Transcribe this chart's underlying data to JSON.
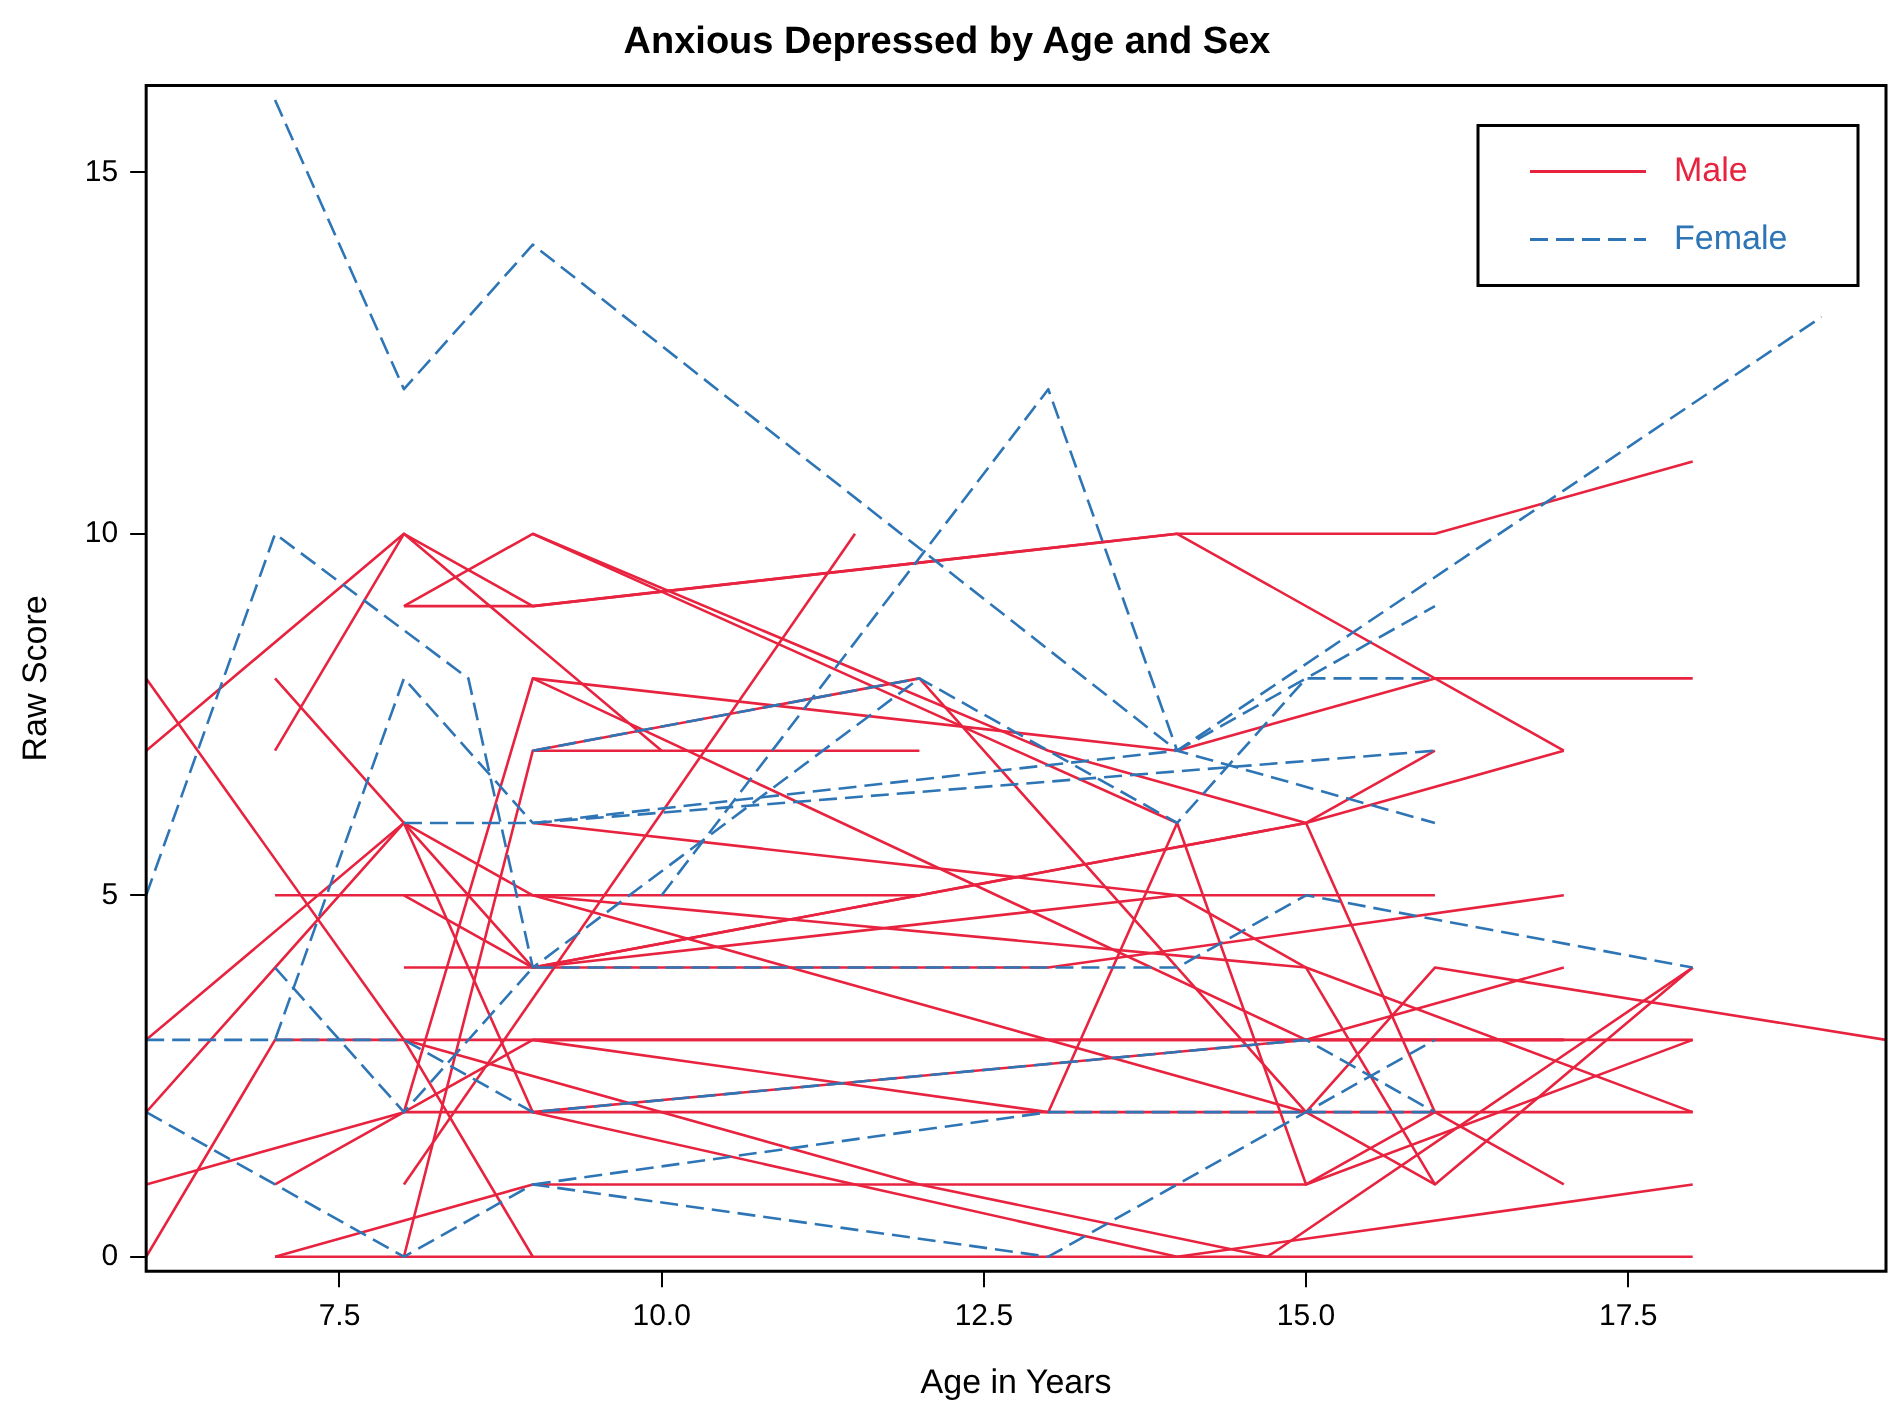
{
  "chart_data": {
    "type": "line",
    "title": "Anxious Depressed by Age and Sex",
    "xlabel": "Age in Years",
    "ylabel": "Raw Score",
    "xlim": [
      6,
      19.5
    ],
    "xticks": [
      {
        "value": 7.5,
        "label": "7.5"
      },
      {
        "value": 10,
        "label": "10.0"
      },
      {
        "value": 12.5,
        "label": "12.5"
      },
      {
        "value": 15,
        "label": "15.0"
      },
      {
        "value": 17.5,
        "label": "17.5"
      }
    ],
    "ylim": [
      -0.2,
      16.2
    ],
    "yticks": [
      0,
      5,
      10,
      15
    ],
    "grid": false,
    "legend": "top right",
    "marker": "none",
    "series": [
      {
        "name": "Male",
        "color": "#e8233f",
        "line_style": "solid",
        "x": [
          6,
          8,
          9,
          14,
          16,
          18
        ],
        "values": [
          7,
          10,
          9,
          10,
          10,
          11
        ]
      },
      {
        "color": "#e8233f",
        "line_style": "solid",
        "x": [
          8,
          9,
          13,
          15,
          17
        ],
        "values": [
          9,
          10,
          7,
          6,
          7
        ]
      },
      {
        "color": "#e8233f",
        "line_style": "solid",
        "x": [
          7,
          9,
          12
        ],
        "values": [
          8,
          4,
          5
        ]
      },
      {
        "color": "#e8233f",
        "line_style": "solid",
        "x": [
          7,
          8,
          10
        ],
        "values": [
          7,
          10,
          7
        ]
      },
      {
        "color": "#e8233f",
        "line_style": "solid",
        "x": [
          8,
          9,
          14,
          17
        ],
        "values": [
          9,
          9,
          10,
          7
        ]
      },
      {
        "color": "#e8233f",
        "line_style": "solid",
        "x": [
          9,
          14
        ],
        "values": [
          10,
          6
        ]
      },
      {
        "color": "#e8233f",
        "line_style": "solid",
        "x": [
          9,
          14,
          16,
          18
        ],
        "values": [
          8,
          7,
          8,
          8
        ]
      },
      {
        "color": "#e8233f",
        "line_style": "solid",
        "x": [
          9,
          12
        ],
        "values": [
          7,
          7
        ]
      },
      {
        "color": "#e8233f",
        "line_style": "solid",
        "x": [
          6,
          8,
          9
        ],
        "values": [
          8,
          3,
          0
        ]
      },
      {
        "color": "#e8233f",
        "line_style": "solid",
        "x": [
          7,
          9,
          12,
          15,
          16
        ],
        "values": [
          5,
          5,
          5,
          6,
          7
        ]
      },
      {
        "color": "#e8233f",
        "line_style": "solid",
        "x": [
          6,
          8,
          9,
          15,
          18
        ],
        "values": [
          3,
          6,
          2,
          3,
          3
        ]
      },
      {
        "color": "#e8233f",
        "line_style": "solid",
        "x": [
          6,
          8,
          9,
          15,
          16
        ],
        "values": [
          2,
          6,
          5,
          4,
          1
        ]
      },
      {
        "color": "#e8233f",
        "line_style": "solid",
        "x": [
          6,
          8,
          9,
          17
        ],
        "values": [
          1,
          2,
          3,
          3
        ]
      },
      {
        "color": "#e8233f",
        "line_style": "solid",
        "x": [
          6,
          7,
          9,
          17
        ],
        "values": [
          0,
          3,
          3,
          3
        ]
      },
      {
        "color": "#e8233f",
        "line_style": "solid",
        "x": [
          7,
          8,
          9,
          18
        ],
        "values": [
          1,
          2,
          2,
          2
        ]
      },
      {
        "color": "#e8233f",
        "line_style": "solid",
        "x": [
          7,
          8,
          9,
          18
        ],
        "values": [
          0,
          0,
          0,
          0
        ]
      },
      {
        "color": "#e8233f",
        "line_style": "solid",
        "x": [
          7,
          9,
          15,
          16,
          17
        ],
        "values": [
          0,
          1,
          1,
          2,
          1
        ]
      },
      {
        "color": "#e8233f",
        "line_style": "solid",
        "x": [
          8,
          9,
          14,
          16
        ],
        "values": [
          4,
          4,
          5,
          5
        ]
      },
      {
        "color": "#e8233f",
        "line_style": "solid",
        "x": [
          8,
          9,
          13,
          17
        ],
        "values": [
          5,
          4,
          4,
          5
        ]
      },
      {
        "color": "#e8233f",
        "line_style": "solid",
        "x": [
          8,
          11.5
        ],
        "values": [
          1,
          10
        ]
      },
      {
        "color": "#e8233f",
        "line_style": "solid",
        "x": [
          8,
          9,
          12,
          15,
          16,
          18
        ],
        "values": [
          0,
          7,
          8,
          2,
          1,
          4
        ]
      },
      {
        "color": "#e8233f",
        "line_style": "solid",
        "x": [
          8,
          9,
          15,
          17
        ],
        "values": [
          2,
          8,
          3,
          4
        ]
      },
      {
        "color": "#e8233f",
        "line_style": "solid",
        "x": [
          9,
          15,
          16,
          19.5
        ],
        "values": [
          5,
          2,
          4,
          3
        ]
      },
      {
        "color": "#e8233f",
        "line_style": "solid",
        "x": [
          9,
          14,
          18
        ],
        "values": [
          2,
          0,
          1
        ]
      },
      {
        "color": "#e8233f",
        "line_style": "solid",
        "x": [
          9,
          13,
          14,
          15,
          18
        ],
        "values": [
          3,
          2,
          6,
          1,
          3
        ]
      },
      {
        "color": "#e8233f",
        "line_style": "solid",
        "x": [
          8,
          12,
          14.7,
          18
        ],
        "values": [
          3,
          1,
          0,
          4
        ]
      },
      {
        "color": "#e8233f",
        "line_style": "solid",
        "x": [
          9,
          14,
          15,
          18
        ],
        "values": [
          6,
          5,
          4,
          2
        ]
      },
      {
        "color": "#e8233f",
        "line_style": "solid",
        "x": [
          9,
          15,
          16
        ],
        "values": [
          4,
          6,
          2
        ]
      },
      {
        "name": "Female",
        "color": "#2e75b6",
        "line_style": "dashed",
        "x": [
          7,
          8,
          9,
          14,
          19
        ],
        "values": [
          16,
          12,
          14,
          7,
          13
        ]
      },
      {
        "color": "#2e75b6",
        "line_style": "dashed",
        "x": [
          10,
          13,
          14,
          16
        ],
        "values": [
          5,
          12,
          7,
          6
        ]
      },
      {
        "color": "#2e75b6",
        "line_style": "dashed",
        "x": [
          6,
          7,
          8.5,
          9,
          12
        ],
        "values": [
          5,
          10,
          8,
          4,
          8
        ]
      },
      {
        "color": "#2e75b6",
        "line_style": "dashed",
        "x": [
          6,
          7,
          8,
          9,
          14,
          16
        ],
        "values": [
          3,
          3,
          8,
          6,
          7,
          9
        ]
      },
      {
        "color": "#2e75b6",
        "line_style": "dashed",
        "x": [
          6,
          7,
          8,
          9,
          13,
          16
        ],
        "values": [
          2,
          1,
          0,
          1,
          0,
          3
        ]
      },
      {
        "color": "#2e75b6",
        "line_style": "dashed",
        "x": [
          7,
          8,
          9,
          14,
          15,
          18
        ],
        "values": [
          4,
          2,
          4,
          4,
          5,
          4
        ]
      },
      {
        "color": "#2e75b6",
        "line_style": "dashed",
        "x": [
          8,
          9,
          16
        ],
        "values": [
          6,
          6,
          7
        ]
      },
      {
        "color": "#2e75b6",
        "line_style": "dashed",
        "x": [
          7,
          8,
          9,
          15,
          16
        ],
        "values": [
          3,
          3,
          2,
          3,
          2
        ]
      },
      {
        "color": "#2e75b6",
        "line_style": "dashed",
        "x": [
          9,
          13,
          16
        ],
        "values": [
          1,
          2,
          2
        ]
      },
      {
        "color": "#2e75b6",
        "line_style": "dashed",
        "x": [
          9,
          12,
          14,
          15,
          16
        ],
        "values": [
          7,
          8,
          6,
          8,
          8
        ]
      }
    ]
  }
}
